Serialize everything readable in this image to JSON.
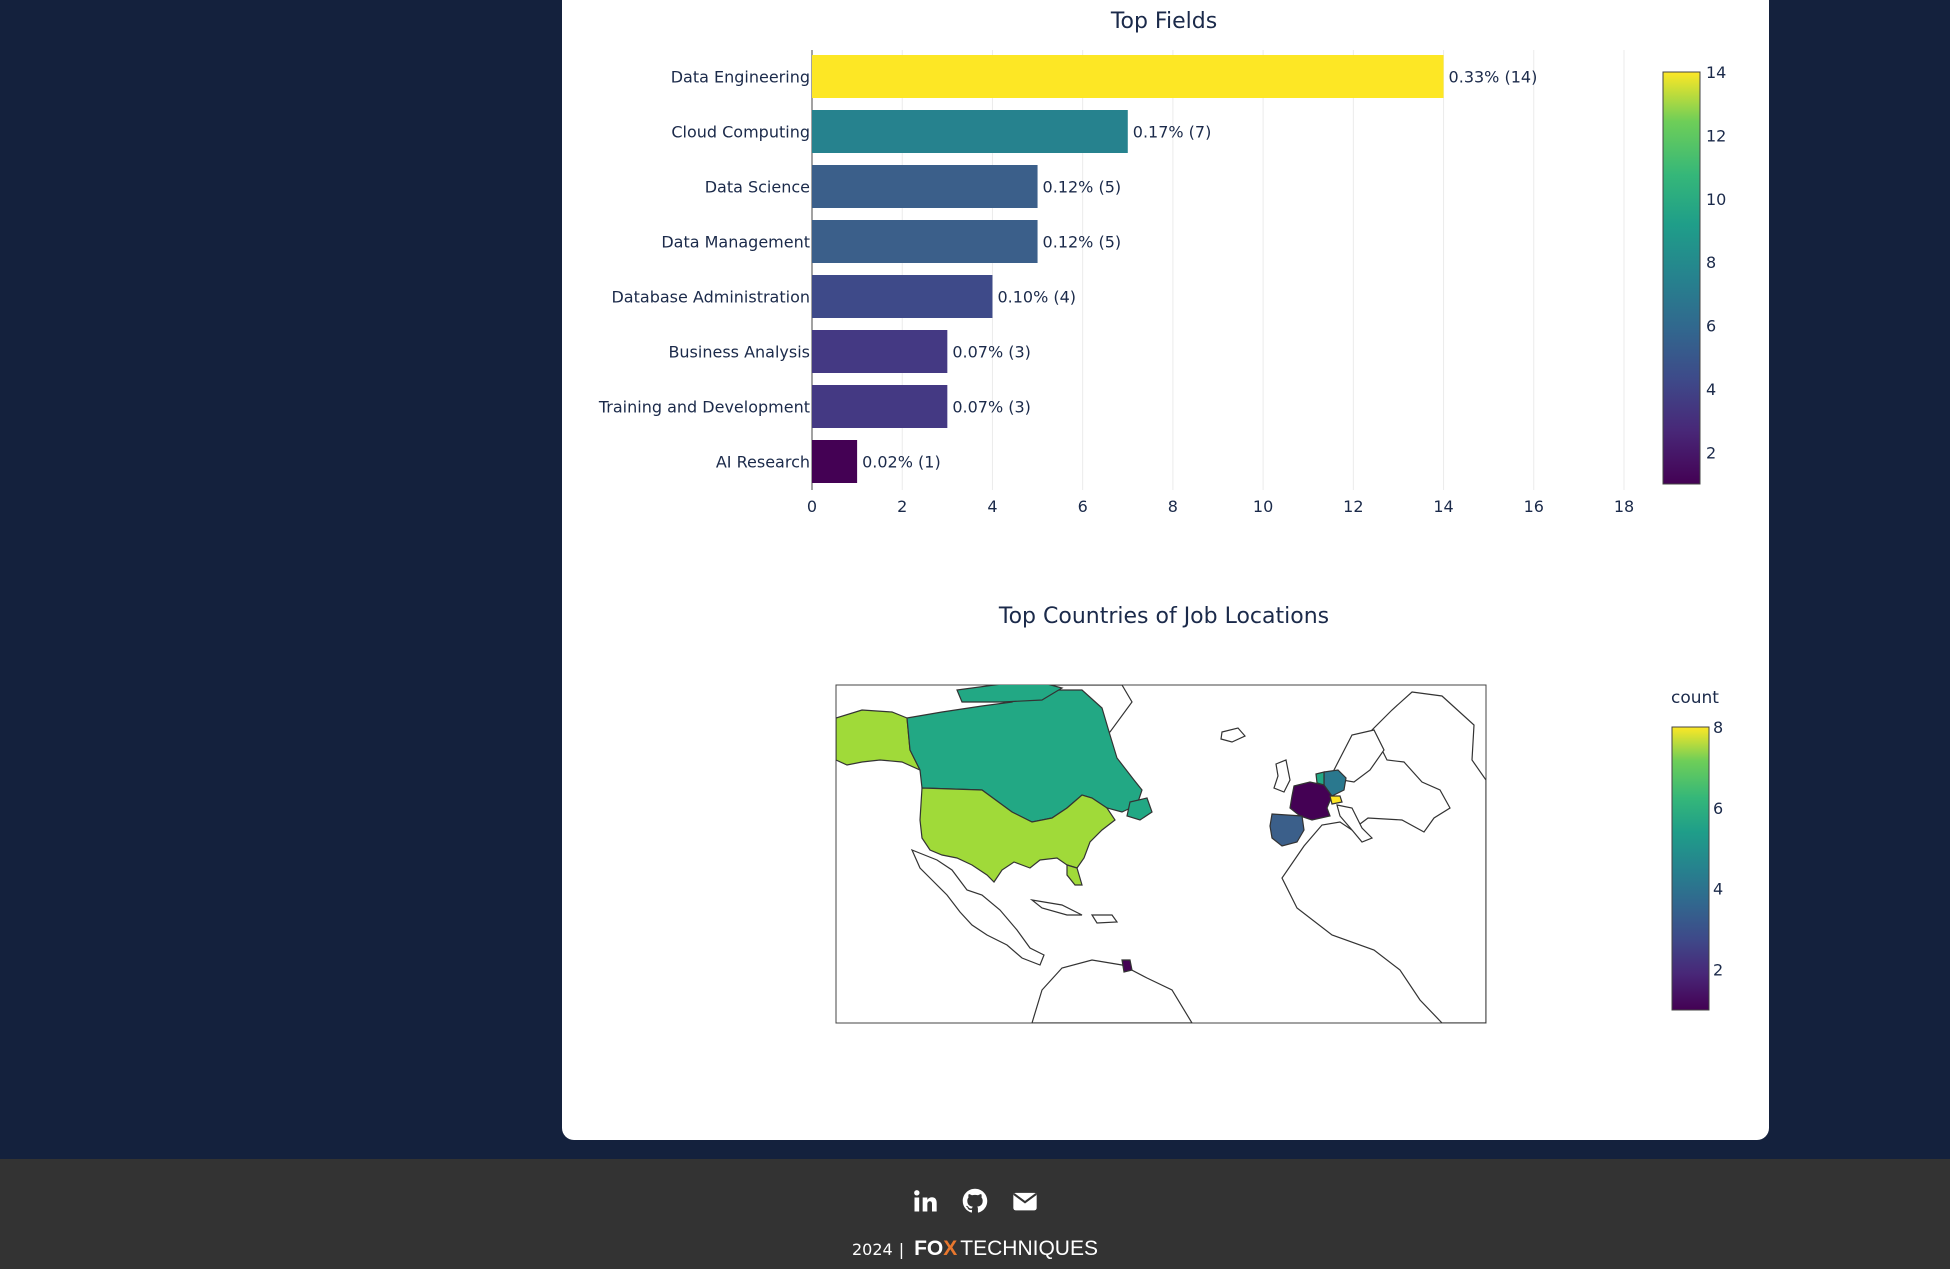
{
  "chart_data": [
    {
      "type": "bar",
      "orientation": "horizontal",
      "title": "Top Fields",
      "xlabel": "",
      "ylabel": "",
      "xlim": [
        0,
        18
      ],
      "xticks": [
        0,
        2,
        4,
        6,
        8,
        10,
        12,
        14,
        16,
        18
      ],
      "grid": true,
      "categories": [
        "Data Engineering",
        "Cloud Computing",
        "Data Science",
        "Data Management",
        "Database Administration",
        "Business Analysis",
        "Training and Development",
        "AI Research"
      ],
      "values": [
        14,
        7,
        5,
        5,
        4,
        3,
        3,
        1
      ],
      "data_labels": [
        "0.33% (14)",
        "0.17% (7)",
        "0.12% (5)",
        "0.12% (5)",
        "0.10% (4)",
        "0.07% (3)",
        "0.07% (3)",
        "0.02% (1)"
      ],
      "colors": [
        "#fde725",
        "#26828e",
        "#3b5f8a",
        "#3b5f8a",
        "#3e4a89",
        "#443983",
        "#443983",
        "#440154"
      ],
      "colorbar": {
        "range": [
          1,
          14
        ],
        "ticks": [
          2,
          4,
          6,
          8,
          10,
          12,
          14
        ],
        "colorscale": "viridis"
      }
    },
    {
      "type": "choropleth",
      "title": "Top Countries of Job Locations",
      "colorbar": {
        "title": "count",
        "range": [
          1,
          8
        ],
        "ticks": [
          2,
          4,
          6,
          8
        ],
        "colorscale": "viridis"
      },
      "regions": [
        {
          "name": "United States",
          "color": "#a0da39"
        },
        {
          "name": "Alaska",
          "color": "#a0da39"
        },
        {
          "name": "Canada",
          "color": "#22a884"
        },
        {
          "name": "France",
          "color": "#440154"
        },
        {
          "name": "Spain",
          "color": "#3b5f8a"
        },
        {
          "name": "Germany",
          "color": "#2a788e"
        },
        {
          "name": "Netherlands",
          "color": "#22a884"
        },
        {
          "name": "Switzerland",
          "color": "#fde725"
        },
        {
          "name": "French Guiana",
          "color": "#440154"
        }
      ]
    }
  ],
  "footer": {
    "year": "2024",
    "separator": "|",
    "brand_fo": "FO",
    "brand_x": "X",
    "brand_tech": "TECHNIQUES",
    "icons": [
      "linkedin-icon",
      "github-icon",
      "email-icon"
    ]
  }
}
